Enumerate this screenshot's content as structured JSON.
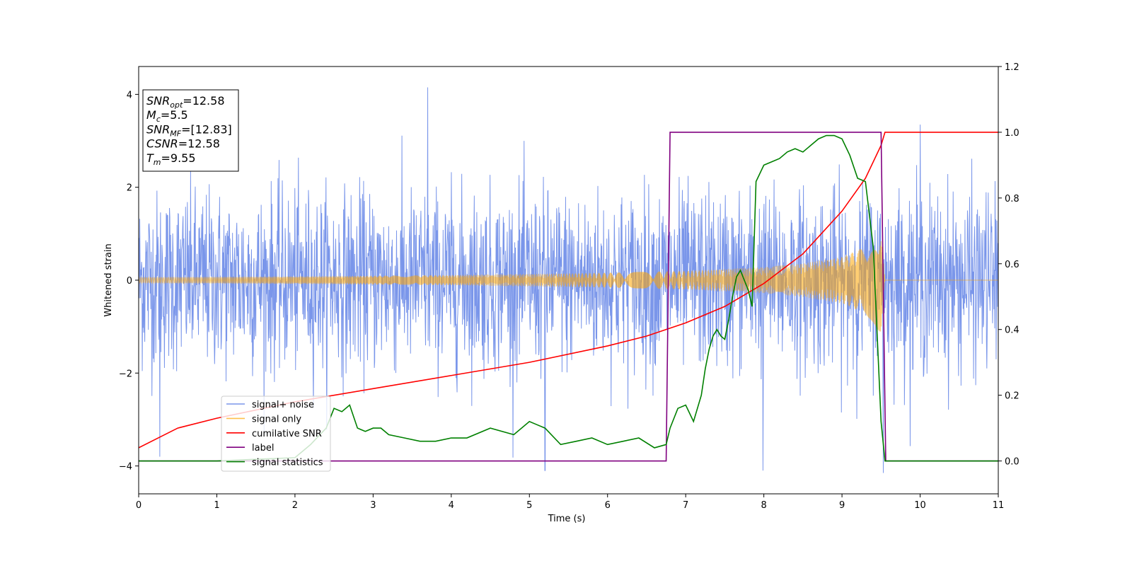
{
  "chart_data": {
    "type": "line",
    "xlabel": "Time (s)",
    "ylabel": "Whitened strain",
    "xlim": [
      0,
      11
    ],
    "ylim_left": [
      -4.6,
      4.6
    ],
    "ylim_right": [
      -0.1,
      1.2
    ],
    "x_ticks": [
      "0",
      "1",
      "2",
      "3",
      "4",
      "5",
      "6",
      "7",
      "8",
      "9",
      "10",
      "11"
    ],
    "y_left_ticks": [
      "−4",
      "−2",
      "0",
      "2",
      "4"
    ],
    "y_right_ticks": [
      "0.0",
      "0.2",
      "0.4",
      "0.6",
      "0.8",
      "1.0",
      "1.2"
    ],
    "grid": false,
    "legend_position": "lower-left",
    "info_box": [
      {
        "sym": "SNR",
        "sub": "opt",
        "val": "=12.58"
      },
      {
        "sym": "M",
        "sub": "c",
        "val": "=5.5"
      },
      {
        "sym": "SNR",
        "sub": "MF",
        "val": "=[12.83]"
      },
      {
        "sym": "CSNR",
        "sub": "",
        "val": "=12.58"
      },
      {
        "sym": "T",
        "sub": "m",
        "val": "=9.55"
      }
    ],
    "series": [
      {
        "name": "signal+ noise",
        "color": "#4169e1",
        "axis": "left",
        "kind": "noise",
        "noise_sigma": 0.95,
        "x_range": [
          0,
          11
        ],
        "peak_values": [
          [
            0.27,
            -3.8
          ],
          [
            3.7,
            4.15
          ],
          [
            5.2,
            -4.1
          ],
          [
            7.99,
            -4.1
          ],
          [
            9.53,
            -4.15
          ],
          [
            10.0,
            3.35
          ]
        ]
      },
      {
        "name": "signal only",
        "color": "#ffa500",
        "axis": "left",
        "kind": "chirp",
        "envelope": [
          [
            0,
            0.06
          ],
          [
            2,
            0.08
          ],
          [
            4,
            0.11
          ],
          [
            6,
            0.16
          ],
          [
            7,
            0.2
          ],
          [
            8,
            0.28
          ],
          [
            8.5,
            0.36
          ],
          [
            9,
            0.5
          ],
          [
            9.3,
            0.72
          ],
          [
            9.5,
            1.15
          ],
          [
            9.55,
            0
          ]
        ],
        "x_range": [
          0,
          11
        ]
      },
      {
        "name": "cumilative SNR",
        "color": "#ff0000",
        "axis": "right",
        "kind": "line",
        "x": [
          0,
          0.5,
          1,
          2,
          3,
          4,
          5,
          6,
          6.5,
          7,
          7.5,
          8,
          8.5,
          9,
          9.3,
          9.5,
          9.55,
          11
        ],
        "values": [
          0.04,
          0.1,
          0.13,
          0.18,
          0.22,
          0.26,
          0.3,
          0.35,
          0.38,
          0.42,
          0.47,
          0.54,
          0.63,
          0.76,
          0.86,
          0.96,
          1.0,
          1.0
        ]
      },
      {
        "name": "label",
        "color": "#800080",
        "axis": "right",
        "kind": "line",
        "x": [
          0,
          6.75,
          6.8,
          9.5,
          9.56,
          11
        ],
        "values": [
          0,
          0,
          1,
          1,
          0,
          0
        ]
      },
      {
        "name": "signal statistics",
        "color": "#008000",
        "axis": "right",
        "kind": "line",
        "x": [
          0,
          1,
          2,
          2.2,
          2.4,
          2.5,
          2.6,
          2.7,
          2.8,
          2.9,
          3.0,
          3.1,
          3.2,
          3.4,
          3.6,
          3.8,
          4.0,
          4.2,
          4.5,
          4.8,
          5.0,
          5.1,
          5.2,
          5.4,
          5.6,
          5.8,
          6.0,
          6.2,
          6.4,
          6.6,
          6.75,
          6.8,
          6.9,
          7.0,
          7.1,
          7.2,
          7.25,
          7.3,
          7.35,
          7.4,
          7.45,
          7.5,
          7.55,
          7.6,
          7.65,
          7.7,
          7.8,
          7.85,
          7.9,
          8.0,
          8.1,
          8.2,
          8.3,
          8.4,
          8.5,
          8.6,
          8.7,
          8.8,
          8.9,
          9.0,
          9.1,
          9.2,
          9.3,
          9.4,
          9.5,
          9.55,
          9.6,
          11
        ],
        "values": [
          0,
          0.0,
          0.01,
          0.05,
          0.1,
          0.16,
          0.15,
          0.17,
          0.1,
          0.09,
          0.1,
          0.1,
          0.08,
          0.07,
          0.06,
          0.06,
          0.07,
          0.07,
          0.1,
          0.08,
          0.12,
          0.11,
          0.1,
          0.05,
          0.06,
          0.07,
          0.05,
          0.06,
          0.07,
          0.04,
          0.05,
          0.1,
          0.16,
          0.17,
          0.12,
          0.2,
          0.28,
          0.34,
          0.38,
          0.4,
          0.38,
          0.37,
          0.43,
          0.5,
          0.56,
          0.58,
          0.52,
          0.47,
          0.85,
          0.9,
          0.91,
          0.92,
          0.94,
          0.95,
          0.94,
          0.96,
          0.98,
          0.99,
          0.99,
          0.98,
          0.93,
          0.86,
          0.85,
          0.65,
          0.12,
          0.0,
          0.0,
          0.0
        ]
      }
    ]
  }
}
